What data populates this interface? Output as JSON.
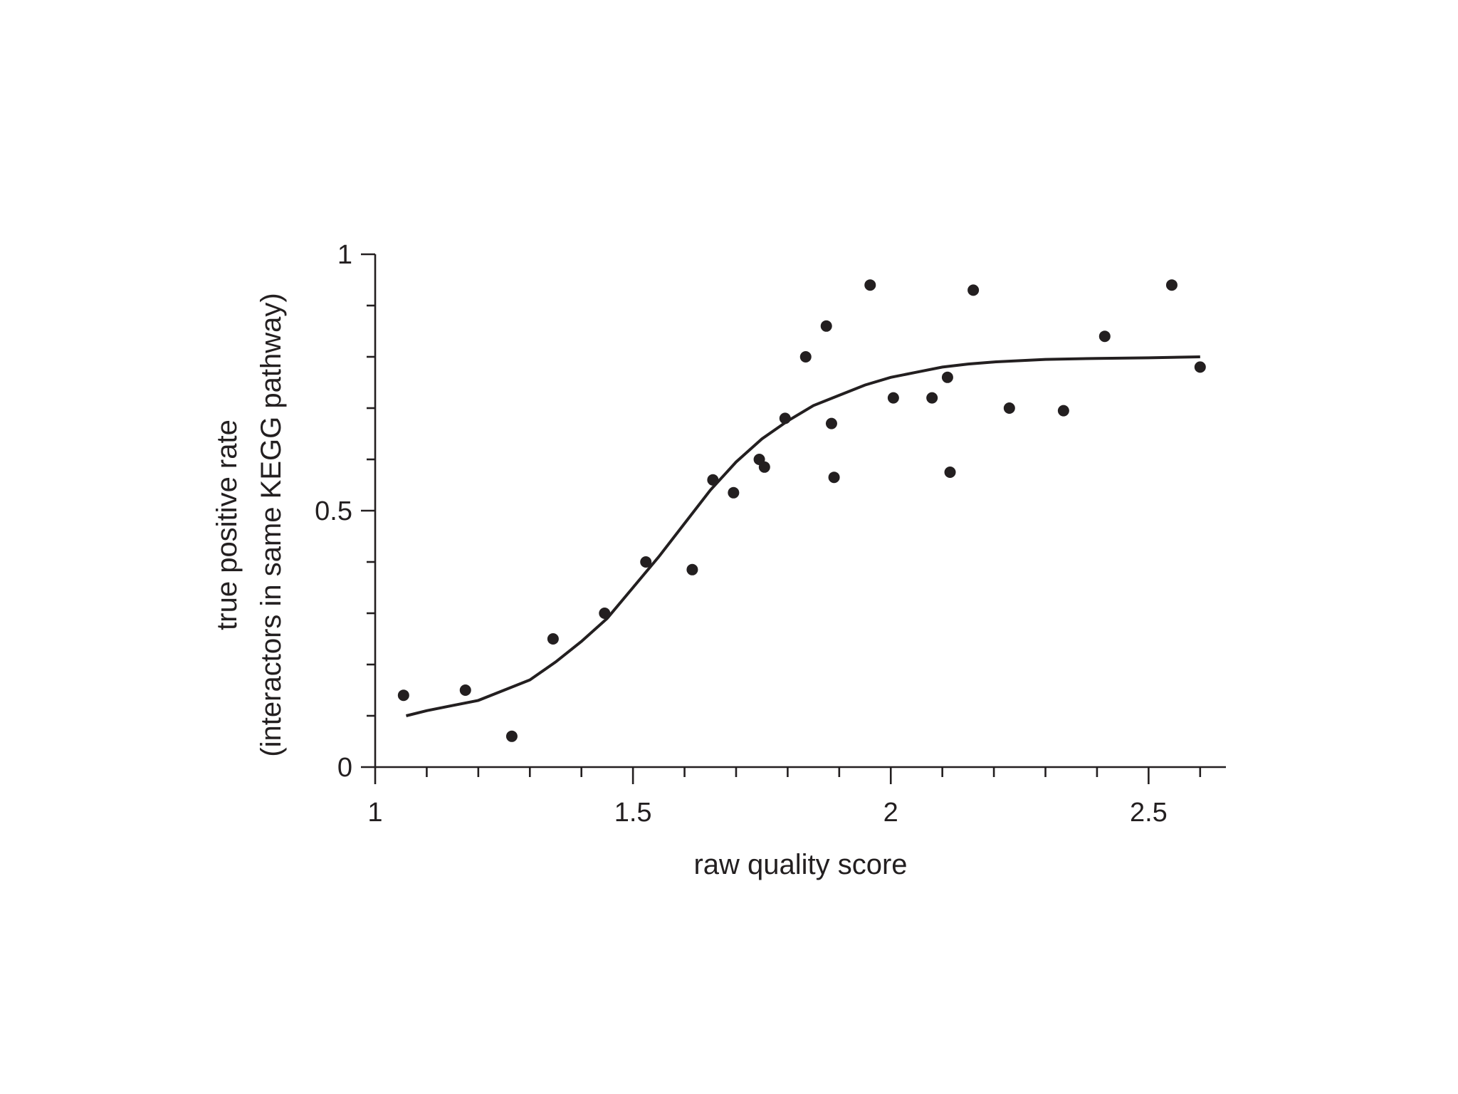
{
  "chart_data": {
    "type": "scatter",
    "title": "",
    "xlabel": "raw quality score",
    "ylabel_line1": "true positive rate",
    "ylabel_line2": "(interactors in same KEGG pathway)",
    "xlim": [
      1,
      2.65
    ],
    "ylim": [
      0,
      1
    ],
    "x_major_ticks": [
      1,
      1.5,
      2,
      2.5
    ],
    "x_tick_labels": [
      "1",
      "1.5",
      "2",
      "2.5"
    ],
    "x_minor_step": 0.1,
    "y_major_ticks": [
      0,
      0.5,
      1
    ],
    "y_tick_labels": [
      "0",
      "0.5",
      "1"
    ],
    "y_minor_step": 0.1,
    "grid": false,
    "legend": "none",
    "color": "#231f20",
    "series": [
      {
        "kind": "points",
        "x": [
          1.055,
          1.175,
          1.265,
          1.345,
          1.445,
          1.525,
          1.615,
          1.655,
          1.695,
          1.745,
          1.755,
          1.795,
          1.835,
          1.875,
          1.885,
          1.89,
          1.96,
          2.005,
          2.08,
          2.11,
          2.115,
          2.16,
          2.23,
          2.335,
          2.415,
          2.545,
          2.6
        ],
        "y": [
          0.14,
          0.15,
          0.06,
          0.25,
          0.3,
          0.4,
          0.385,
          0.56,
          0.535,
          0.6,
          0.585,
          0.68,
          0.8,
          0.86,
          0.67,
          0.565,
          0.94,
          0.72,
          0.72,
          0.76,
          0.575,
          0.93,
          0.7,
          0.695,
          0.84,
          0.94,
          0.78
        ]
      },
      {
        "kind": "fit-curve",
        "x": [
          1.06,
          1.1,
          1.15,
          1.2,
          1.25,
          1.3,
          1.35,
          1.4,
          1.45,
          1.5,
          1.55,
          1.6,
          1.65,
          1.7,
          1.75,
          1.8,
          1.85,
          1.9,
          1.95,
          2.0,
          2.05,
          2.1,
          2.15,
          2.2,
          2.3,
          2.4,
          2.5,
          2.6
        ],
        "y": [
          0.1,
          0.11,
          0.12,
          0.13,
          0.15,
          0.17,
          0.205,
          0.245,
          0.29,
          0.35,
          0.41,
          0.475,
          0.54,
          0.595,
          0.64,
          0.675,
          0.705,
          0.725,
          0.745,
          0.76,
          0.77,
          0.78,
          0.786,
          0.79,
          0.795,
          0.797,
          0.798,
          0.8
        ]
      }
    ]
  }
}
